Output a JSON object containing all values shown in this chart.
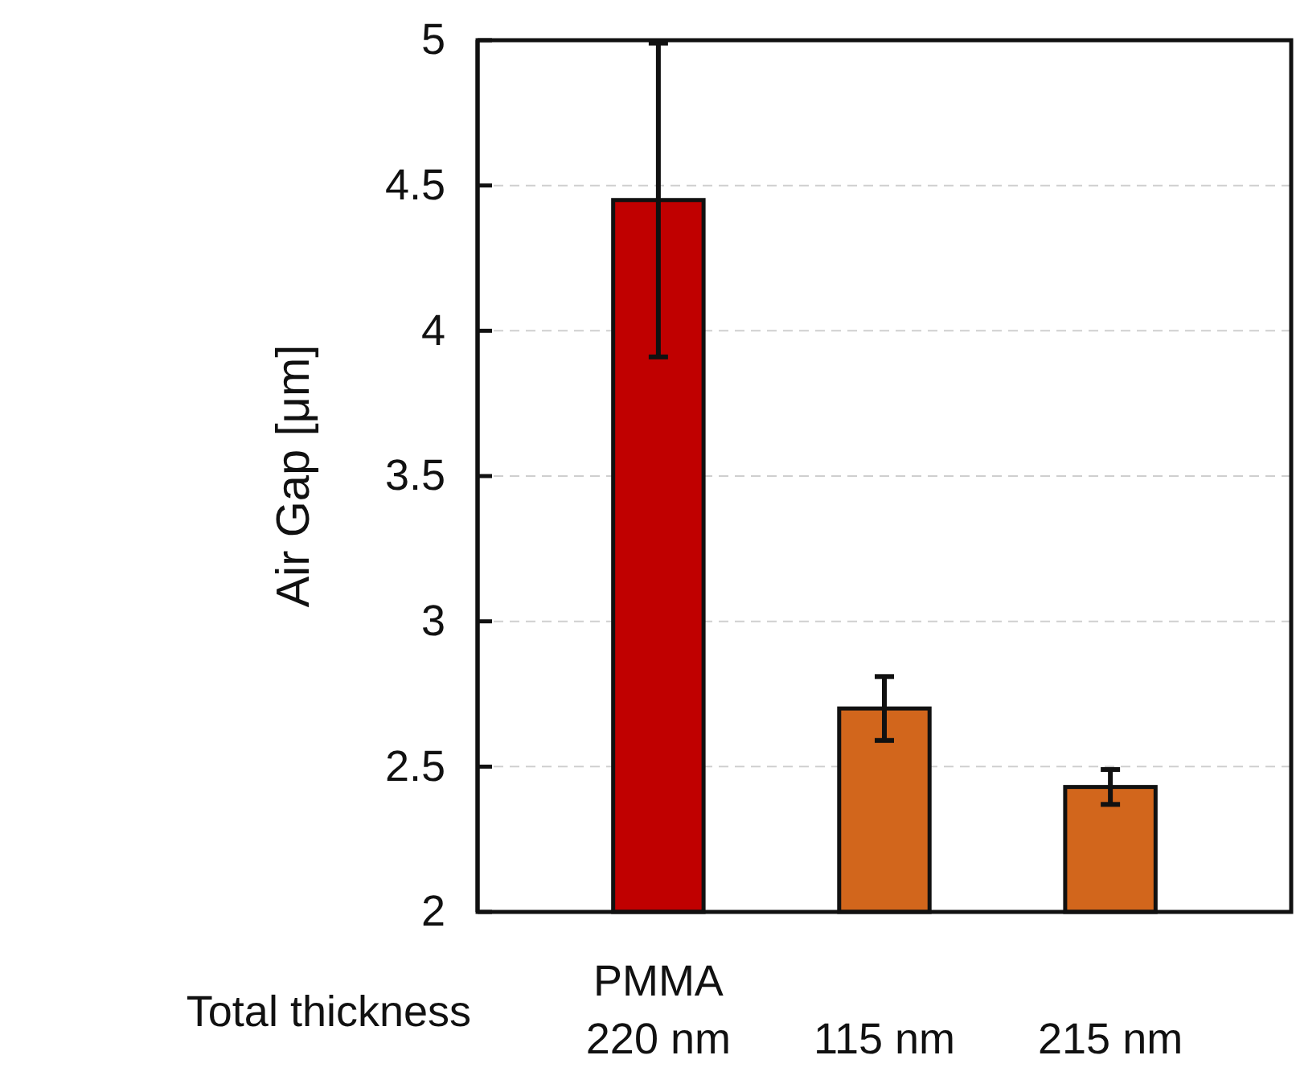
{
  "chart_data": {
    "type": "bar",
    "ylabel": "Air Gap [μm]",
    "categories": [
      "PMMA\n220 nm",
      "115 nm",
      "215 nm"
    ],
    "values": [
      4.45,
      2.7,
      2.43
    ],
    "colors": [
      "#c00000",
      "#d2661c",
      "#d2661c"
    ],
    "errors": [
      0.54,
      0.11,
      0.06
    ],
    "ylim": [
      2,
      5
    ],
    "yticks": [
      2,
      2.5,
      3,
      3.5,
      4,
      4.5,
      5
    ],
    "grid": "y",
    "annotations": [
      "Total thickness"
    ]
  }
}
